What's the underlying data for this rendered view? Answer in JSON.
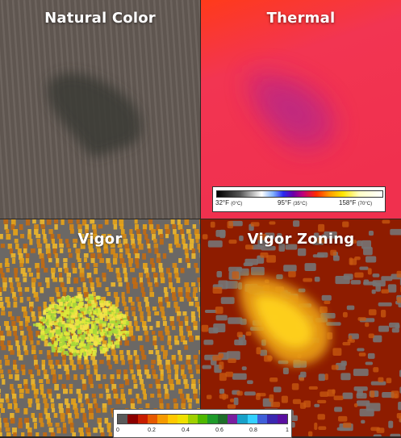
{
  "panels": {
    "natural": {
      "title": "Natural Color"
    },
    "thermal": {
      "title": "Thermal"
    },
    "vigor": {
      "title": "Vigor"
    },
    "zoning": {
      "title": "Vigor Zoning"
    }
  },
  "thermal_legend": {
    "low": "32°F",
    "low_c": "(0°C)",
    "mid": "95°F",
    "mid_c": "(35°C)",
    "high": "158°F",
    "high_c": "(70°C)"
  },
  "vigor_legend": {
    "ticks": [
      "0",
      "0.2",
      "0.4",
      "0.6",
      "0.8",
      "1"
    ],
    "colors": [
      "#5a5a5a",
      "#8b0000",
      "#c81e00",
      "#e65a00",
      "#f59a00",
      "#ffc800",
      "#f0e000",
      "#a0d000",
      "#4fb800",
      "#1e9b2a",
      "#1e6e2a",
      "#7a1fa0",
      "#17a0c8",
      "#33d0ff",
      "#3f5fd8",
      "#3a28b0",
      "#5a0fa0"
    ]
  },
  "colors": {
    "soil": "#5f5650",
    "dry_patch": "#3b3a36",
    "thermal_hot": "#f0304e",
    "thermal_edge": "#ff3a1a",
    "vigor_stripe": "#e9a416",
    "vigor_core": "#dde93a",
    "zoning_background": "#8e1c00",
    "zoning_core": "#ffd21a"
  }
}
